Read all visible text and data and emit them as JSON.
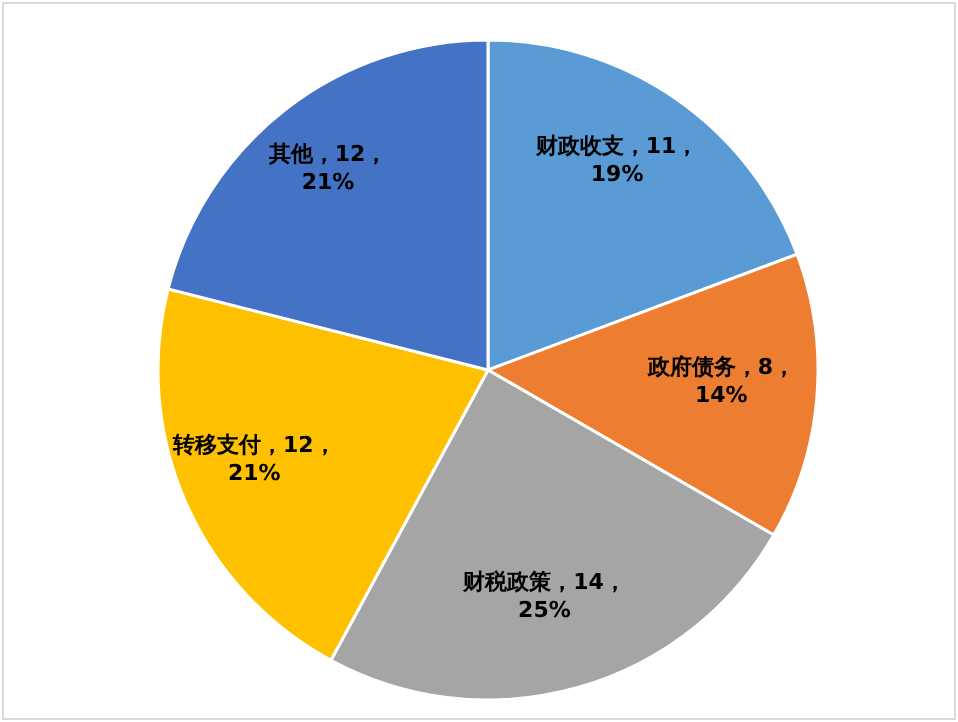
{
  "chart_data": {
    "type": "pie",
    "categories": [
      "财政收支",
      "政府债务",
      "财税政策",
      "转移支付",
      "其他"
    ],
    "values": [
      11,
      8,
      14,
      12,
      12
    ],
    "colors": [
      "#5b9bd5",
      "#ed7d31",
      "#a5a5a5",
      "#ffc000",
      "#4472c4"
    ],
    "value_labels": [
      "11，19%",
      "8，14%",
      "14，25%",
      "12，21%",
      "12，21%"
    ],
    "data_labels": true,
    "legend": false
  }
}
